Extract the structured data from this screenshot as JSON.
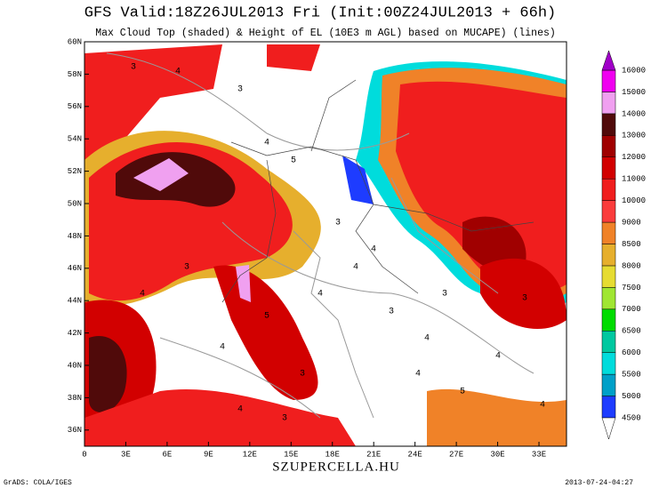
{
  "header": {
    "title": "GFS Valid:18Z26JUL2013 Fri (Init:00Z24JUL2013 + 66h)",
    "subtitle": "Max Cloud Top (shaded) & Height of EL (10E3 m AGL) based on MUCAPE) (lines)"
  },
  "map": {
    "lonlim": [
      0,
      35
    ],
    "latlim": [
      35,
      60
    ],
    "lonticks": [
      0,
      {
        "value": 3,
        "label": "3E"
      },
      {
        "value": 6,
        "label": "6E"
      },
      {
        "value": 9,
        "label": "9E"
      },
      {
        "value": 12,
        "label": "12E"
      },
      {
        "value": 15,
        "label": "15E"
      },
      {
        "value": 18,
        "label": "18E"
      },
      {
        "value": 21,
        "label": "21E"
      },
      {
        "value": 24,
        "label": "24E"
      },
      {
        "value": 27,
        "label": "27E"
      },
      {
        "value": 30,
        "label": "30E"
      },
      {
        "value": 33,
        "label": "33E"
      }
    ],
    "latticks": [
      {
        "value": 36,
        "label": "36N"
      },
      {
        "value": 38,
        "label": "38N"
      },
      {
        "value": 40,
        "label": "40N"
      },
      {
        "value": 42,
        "label": "42N"
      },
      {
        "value": 44,
        "label": "44N"
      },
      {
        "value": 46,
        "label": "46N"
      },
      {
        "value": 48,
        "label": "48N"
      },
      {
        "value": 50,
        "label": "50N"
      },
      {
        "value": 52,
        "label": "52N"
      },
      {
        "value": 54,
        "label": "54N"
      },
      {
        "value": 56,
        "label": "56N"
      },
      {
        "value": 58,
        "label": "58N"
      },
      {
        "value": 60,
        "label": "60N"
      }
    ],
    "contour_labels": [
      3,
      4,
      3,
      4,
      5,
      3,
      4,
      4,
      3,
      4,
      5,
      3,
      4,
      4,
      3,
      4,
      3,
      4,
      5,
      4,
      3,
      4,
      4,
      3
    ]
  },
  "colorbar": {
    "levels": [
      4500,
      5000,
      5500,
      6000,
      6500,
      7000,
      7500,
      8000,
      8500,
      9000,
      10000,
      11000,
      12000,
      13000,
      14000,
      15000,
      16000
    ],
    "colors": [
      "#ffffff",
      "#1e3cff",
      "#00a0c8",
      "#00dcdc",
      "#00c8a0",
      "#00dc00",
      "#a0e632",
      "#e6dc32",
      "#e6af2d",
      "#f08228",
      "#fa3c3c",
      "#f01e1e",
      "#d20000",
      "#a00000",
      "#500a0a",
      "#f0a0f0",
      "#f000f0",
      "#a000c8"
    ]
  },
  "footer": {
    "left": "GrADS: COLA/IGES",
    "center": "SZUPERCELLA.HU",
    "right": "2013-07-24-04:27"
  }
}
